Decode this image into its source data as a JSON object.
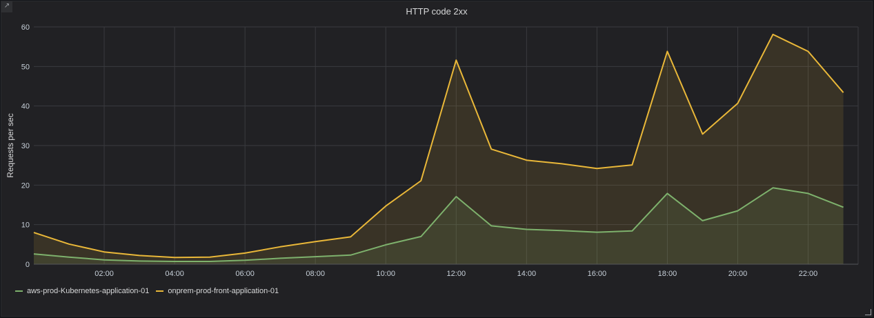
{
  "panel": {
    "title": "HTTP code 2xx",
    "link_icon": "external-link-icon",
    "resize_icon": "resize-corner-icon"
  },
  "chart_data": {
    "type": "area",
    "title": "HTTP code 2xx",
    "xlabel": "",
    "ylabel": "Requests per sec",
    "x": [
      "00:00",
      "01:00",
      "02:00",
      "03:00",
      "04:00",
      "05:00",
      "06:00",
      "07:00",
      "08:00",
      "09:00",
      "10:00",
      "11:00",
      "12:00",
      "13:00",
      "14:00",
      "15:00",
      "16:00",
      "17:00",
      "18:00",
      "19:00",
      "20:00",
      "21:00",
      "22:00",
      "23:00"
    ],
    "xticks": [
      "02:00",
      "04:00",
      "06:00",
      "08:00",
      "10:00",
      "12:00",
      "14:00",
      "16:00",
      "18:00",
      "20:00",
      "22:00"
    ],
    "yticks": [
      0,
      10,
      20,
      30,
      40,
      50,
      60
    ],
    "ylim": [
      0,
      60
    ],
    "grid": true,
    "legend_position": "bottom-left",
    "series": [
      {
        "name": "aws-prod-Kubernetes-application-01",
        "color": "#7eb26d",
        "values": [
          2.6,
          1.8,
          1.1,
          0.8,
          0.7,
          0.7,
          1.0,
          1.5,
          1.9,
          2.3,
          4.9,
          7.0,
          17.1,
          9.7,
          8.8,
          8.5,
          8.1,
          8.4,
          17.9,
          11.0,
          13.5,
          19.3,
          17.9,
          14.4
        ]
      },
      {
        "name": "onprem-prod-front-application-01",
        "color": "#eab839",
        "values": [
          8.0,
          5.1,
          3.1,
          2.2,
          1.7,
          1.8,
          2.8,
          4.4,
          5.7,
          6.9,
          14.7,
          21.1,
          51.6,
          29.1,
          26.3,
          25.4,
          24.2,
          25.1,
          53.8,
          32.9,
          40.7,
          58.1,
          53.8,
          43.4
        ]
      }
    ]
  }
}
